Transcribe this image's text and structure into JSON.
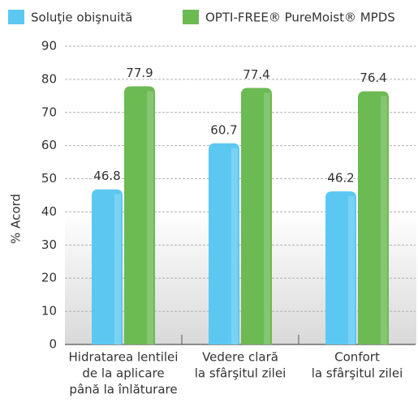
{
  "chart_data": {
    "type": "bar",
    "y_label": "% Acord",
    "categories": [
      [
        "Hidratarea lentilei",
        "de la aplicare",
        "până la înlăturare"
      ],
      [
        "Vedere clară",
        "la sfârşitul zilei"
      ],
      [
        "Confort",
        "la sfârşitul zilei"
      ]
    ],
    "series": [
      {
        "name": "Soluţie obişnuită",
        "color": "#5cc8f2",
        "values": [
          46.8,
          60.7,
          46.2
        ]
      },
      {
        "name": "OPTI-FREE® PureMoist® MPDS",
        "color": "#6cba52",
        "values": [
          77.9,
          77.4,
          76.4
        ]
      }
    ],
    "ylim": [
      0,
      90
    ],
    "yticks": [
      0,
      10,
      20,
      30,
      40,
      50,
      60,
      70,
      80,
      90
    ],
    "grid": true
  }
}
